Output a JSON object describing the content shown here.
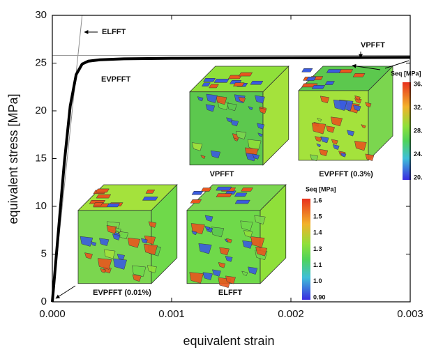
{
  "chart_data": {
    "type": "line",
    "x_label": "equivalent strain",
    "y_label": "equivalent stress [MPa]",
    "xlim": [
      0,
      0.003
    ],
    "ylim": [
      0,
      30
    ],
    "xticks": [
      {
        "value": 0,
        "label": "0.000"
      },
      {
        "value": 0.001,
        "label": "0.001"
      },
      {
        "value": 0.002,
        "label": "0.002"
      },
      {
        "value": 0.003,
        "label": "0.003"
      }
    ],
    "yticks": [
      0,
      5,
      10,
      15,
      20,
      25,
      30
    ],
    "series": [
      {
        "name": "ELFFT",
        "color": "#8a8a8a",
        "x": [
          0,
          0.00025
        ],
        "values": [
          0,
          30
        ]
      },
      {
        "name": "VPFFT",
        "color": "#9a9a9a",
        "x": [
          0,
          0.003
        ],
        "values": [
          25.8,
          25.8
        ]
      },
      {
        "name": "EVPFFT",
        "color": "#000000",
        "x": [
          0,
          0.0001,
          0.00015,
          0.0002,
          0.00025,
          0.0003,
          0.0004,
          0.0006,
          0.001,
          0.002,
          0.003
        ],
        "values": [
          0,
          14.5,
          20.5,
          23.8,
          24.9,
          25.2,
          25.35,
          25.45,
          25.5,
          25.55,
          25.6
        ]
      }
    ],
    "insets": [
      {
        "label": "VPFFT"
      },
      {
        "label": "EVPFFT (0.3%)"
      },
      {
        "label": "EVPFFT (0.01%)"
      },
      {
        "label": "ELFFT"
      }
    ],
    "colorbars": [
      {
        "title": "Seq [MPa]",
        "labels": [
          "36.",
          "32.",
          "28.",
          "24.",
          "20."
        ]
      },
      {
        "title": "Seq [MPa]",
        "labels": [
          "1.6",
          "1.5",
          "1.4",
          "1.3",
          "1.1",
          "1.0",
          "0.90"
        ]
      }
    ]
  }
}
